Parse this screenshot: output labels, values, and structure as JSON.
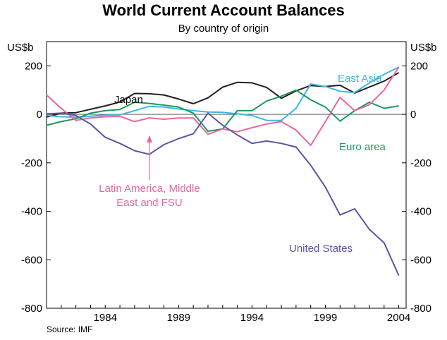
{
  "title": "World Current Account Balances",
  "subtitle": "By country of origin",
  "source": "Source: IMF",
  "chart_data": {
    "type": "line",
    "title": "World Current Account Balances",
    "subtitle": "By country of origin",
    "xlabel": "",
    "ylabel_left": "US$b",
    "ylabel_right": "US$b",
    "xlim": [
      1980,
      2004.5
    ],
    "ylim": [
      -800,
      300
    ],
    "xticks": [
      1984,
      1989,
      1994,
      1999,
      2004
    ],
    "yticks": [
      -800,
      -600,
      -400,
      -200,
      0,
      200
    ],
    "grid": false,
    "x": [
      1980,
      1981,
      1982,
      1983,
      1984,
      1985,
      1986,
      1987,
      1988,
      1989,
      1990,
      1991,
      1992,
      1993,
      1994,
      1995,
      1996,
      1997,
      1998,
      1999,
      2000,
      2001,
      2002,
      2003,
      2004
    ],
    "series": [
      {
        "name": "Japan",
        "color": "#231f20",
        "values": [
          -11,
          5,
          7,
          21,
          35,
          51,
          86,
          85,
          80,
          63,
          44,
          68,
          112,
          132,
          130,
          111,
          66,
          97,
          119,
          115,
          120,
          88,
          113,
          137,
          172
        ]
      },
      {
        "name": "East Asia",
        "color": "#3fb5e5",
        "values": [
          -5,
          -10,
          -12,
          -8,
          -3,
          -2,
          15,
          33,
          30,
          22,
          15,
          10,
          8,
          2,
          -5,
          -25,
          -25,
          25,
          125,
          115,
          95,
          90,
          130,
          165,
          195
        ]
      },
      {
        "name": "Euro area",
        "color": "#1a9a5c",
        "values": [
          -45,
          -30,
          -18,
          5,
          15,
          20,
          50,
          45,
          38,
          30,
          5,
          -70,
          -60,
          15,
          15,
          55,
          75,
          100,
          60,
          30,
          -28,
          15,
          50,
          25,
          35
        ]
      },
      {
        "name": "Latin America, Middle East and FSU",
        "color": "#e8669f",
        "values": [
          80,
          25,
          -25,
          -15,
          -10,
          -8,
          -30,
          -15,
          -20,
          -15,
          -15,
          -82,
          -60,
          -72,
          -55,
          -40,
          -30,
          -65,
          -128,
          -30,
          70,
          15,
          40,
          100,
          195
        ]
      },
      {
        "name": "United States",
        "color": "#5a54a4",
        "values": [
          2,
          5,
          -5,
          -40,
          -95,
          -120,
          -150,
          -165,
          -125,
          -100,
          -80,
          5,
          -45,
          -85,
          -120,
          -110,
          -120,
          -135,
          -210,
          -300,
          -415,
          -390,
          -475,
          -530,
          -665
        ]
      }
    ],
    "annotations": [
      {
        "text": "Japan",
        "series": "Japan"
      },
      {
        "text": "East Asia",
        "series": "East Asia"
      },
      {
        "text": "Euro area",
        "series": "Euro area"
      },
      {
        "text": "Latin America, Middle",
        "series": "Latin America, Middle East and FSU"
      },
      {
        "text": "East and FSU",
        "series": "Latin America, Middle East and FSU"
      },
      {
        "text": "United States",
        "series": "United States"
      }
    ]
  }
}
